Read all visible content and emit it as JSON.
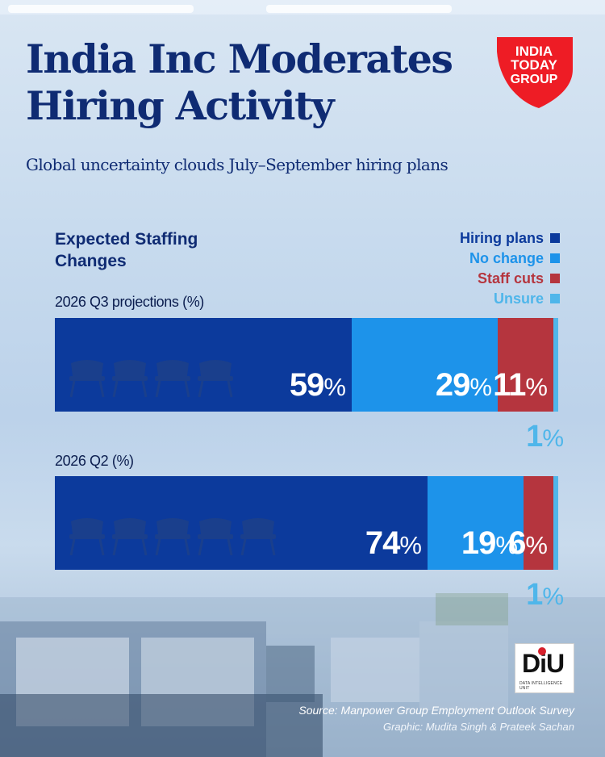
{
  "header": {
    "title": "India Inc Moderates Hiring Activity",
    "subtitle": "Global uncertainty clouds July–September hiring plans",
    "logo": {
      "line1": "INDIA",
      "line2": "TODAY",
      "line3": "GROUP"
    }
  },
  "colors": {
    "hiring_plans": "#0c3a9c",
    "no_change": "#1d93ea",
    "staff_cuts": "#b5353e",
    "unsure": "#4fb6ea",
    "title": "#0f2b73"
  },
  "chart_data": {
    "type": "bar",
    "orientation": "horizontal-stacked",
    "title": "Expected Staffing Changes",
    "legend_position": "top-right",
    "series": [
      {
        "name": "Hiring plans",
        "color": "#0c3a9c"
      },
      {
        "name": "No change",
        "color": "#1d93ea"
      },
      {
        "name": "Staff cuts",
        "color": "#b5353e"
      },
      {
        "name": "Unsure",
        "color": "#4fb6ea"
      }
    ],
    "categories": [
      "2026 Q3 projections (%)",
      "2026 Q2 (%)"
    ],
    "values": [
      [
        59,
        29,
        11,
        1
      ],
      [
        74,
        19,
        6,
        1
      ]
    ],
    "unit": "%"
  },
  "footer": {
    "source": "Source: Manpower Group Employment Outlook Survey",
    "credit": "Graphic: Mudita Singh & Prateek Sachan",
    "badge_text": "DiU",
    "badge_sub": "DATA INTELLIGENCE UNIT"
  }
}
